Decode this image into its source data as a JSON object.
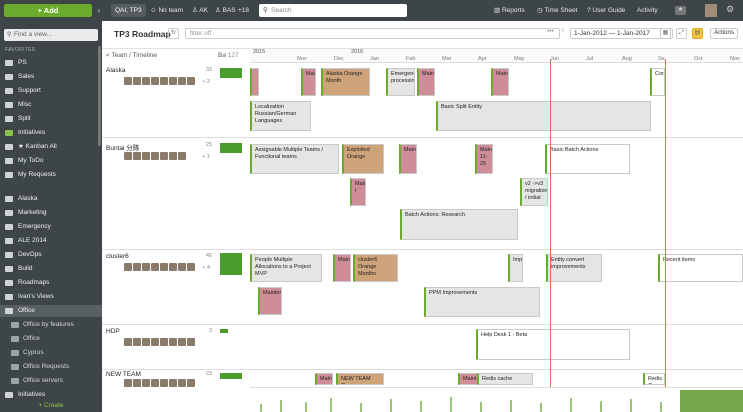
{
  "topbar": {
    "add_label": "+ Add",
    "crumb": "QAI, TP3",
    "team": "No team",
    "ak": "AK",
    "bas": "BAS",
    "plus": "+18",
    "search_placeholder": "Search",
    "reports": "Reports",
    "timesheet": "Time Sheet",
    "userguide": "User Guide",
    "activity": "Activity"
  },
  "sidebar": {
    "find_placeholder": "Find a view...",
    "favorites_head": "FAVORITES",
    "favorites": [
      "PS",
      "Sales",
      "Support",
      "Misc",
      "Split",
      "Initiatives",
      "★ Kanban All",
      "My ToDo",
      "My Requests"
    ],
    "teams": [
      "Alaska",
      "Marketing",
      "Emergency",
      "ALE 2014",
      "DevOps",
      "Build",
      "Roadmaps",
      "Ivan's Views",
      "Office"
    ],
    "office_sub": [
      "Office by features",
      "Office",
      "Cyprus",
      "Office Requests",
      "Office servers"
    ],
    "last": "Initiatives",
    "create": "+ Create"
  },
  "header": {
    "title": "TP3 Roadmap",
    "filter_placeholder": "filter off",
    "range": "1-Jan-2012 — 1-Jan-2017",
    "actions": "Actions",
    "col_team": "< Team / Timeline",
    "col_ba": "Ba",
    "col_ba_count": "127"
  },
  "timeline": {
    "years": [
      {
        "label": "2015"
      },
      {
        "label": "2016"
      }
    ],
    "months": [
      "Nov",
      "Dec",
      "Jan",
      "Feb",
      "Mar",
      "Apr",
      "May",
      "Jun",
      "Jul",
      "Aug",
      "Se",
      "Oct",
      "Nov"
    ]
  },
  "teams": [
    {
      "name": "Alaska",
      "count": "33",
      "extra": "+ 2"
    },
    {
      "name": "Buntai 分隊",
      "count": "25",
      "extra": "+ 1"
    },
    {
      "name": "cluster6",
      "count": "46",
      "extra": "+ 4"
    },
    {
      "name": "HDP",
      "count": "3",
      "extra": ""
    },
    {
      "name": "NEW TEAM",
      "count": "23",
      "extra": ""
    }
  ],
  "bars": {
    "a1": "Maint",
    "a2": "Alaska Orange Month",
    "a3": "Emergency processing",
    "a4": "Maint",
    "a5": "Maint",
    "a6": "Cor",
    "a7": "Localization Russian/German Languages",
    "a8": "Basic Split Entity",
    "b1": "Assignable Multiple Teams / Functional teams",
    "b2": "Exploited Orange",
    "b3": "Maint",
    "b4": "Maint 11-25",
    "b5": "Basic Batch Actions",
    "b6": "Main I",
    "b7": "v2 ->v3 migration / initial",
    "b8": "Batch Actions: Research",
    "c1": "People Multiple Allocations to a Project MVP",
    "c2": "Maint",
    "c3": "cluster6 Orange Months",
    "c4": "Impr",
    "c5": "Entity convert improvements",
    "c6": "Recent items",
    "c7": "Maintenan",
    "c8": "PPM Improvements",
    "d1": "Help Desk 1 - Beta",
    "e1": "Maint",
    "e2": "NEW TEAM Orange",
    "e3": "Maint",
    "e4": "Redis cache",
    "e5": "Redis C"
  }
}
